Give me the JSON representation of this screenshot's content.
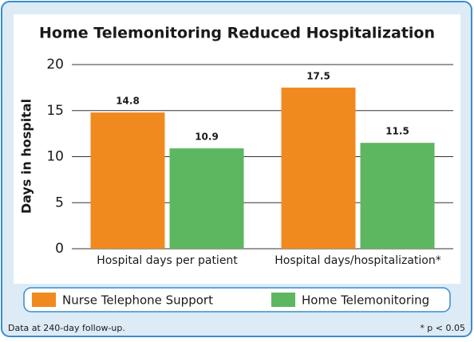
{
  "chart_data": {
    "type": "bar",
    "title": "Home Telemonitoring Reduced Hospitalization",
    "y_label": "Days in hospital",
    "categories": [
      "Hospital days per patient",
      "Hospital days/hospitalization*"
    ],
    "series": [
      {
        "name": "Nurse Telephone Support",
        "color": "#f08a1f",
        "values": [
          14.8,
          17.5
        ]
      },
      {
        "name": "Home Telemonitoring",
        "color": "#5db761",
        "values": [
          10.9,
          11.5
        ]
      }
    ],
    "ylim": [
      0,
      20
    ],
    "yticks": [
      0,
      5,
      10,
      15,
      20
    ],
    "grid": true,
    "legend": "bottom",
    "footnote_left": "Data at 240-day follow-up.",
    "footnote_right": "* p < 0.05"
  }
}
